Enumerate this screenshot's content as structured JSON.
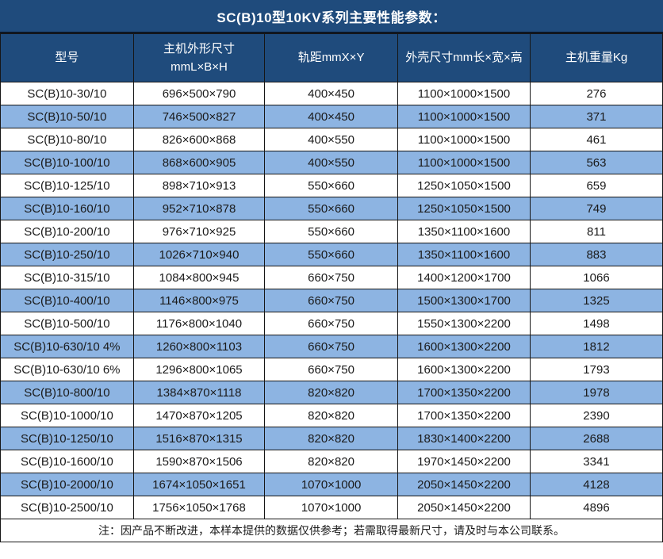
{
  "page": {
    "title": "SC(B)10型10KV系列主要性能参数："
  },
  "table": {
    "headers": [
      {
        "label": "型号"
      },
      {
        "label": "主机外形尺寸",
        "label2": "mmL×B×H"
      },
      {
        "label": "轨距mmX×Y"
      },
      {
        "label": "外壳尺寸mm长×宽×高"
      },
      {
        "label": "主机重量Kg"
      }
    ],
    "rows": [
      [
        "SC(B)10-30/10",
        "696×500×790",
        "400×450",
        "1100×1000×1500",
        "276"
      ],
      [
        "SC(B)10-50/10",
        "746×500×827",
        "400×450",
        "1100×1000×1500",
        "371"
      ],
      [
        "SC(B)10-80/10",
        "826×600×868",
        "400×550",
        "1100×1000×1500",
        "461"
      ],
      [
        "SC(B)10-100/10",
        "868×600×905",
        "400×550",
        "1100×1000×1500",
        "563"
      ],
      [
        "SC(B)10-125/10",
        "898×710×913",
        "550×660",
        "1250×1050×1500",
        "659"
      ],
      [
        "SC(B)10-160/10",
        "952×710×878",
        "550×660",
        "1250×1050×1500",
        "749"
      ],
      [
        "SC(B)10-200/10",
        "976×710×925",
        "550×660",
        "1350×1100×1600",
        "811"
      ],
      [
        "SC(B)10-250/10",
        "1026×710×940",
        "550×660",
        "1350×1100×1600",
        "883"
      ],
      [
        "SC(B)10-315/10",
        "1084×800×945",
        "660×750",
        "1400×1200×1700",
        "1066"
      ],
      [
        "SC(B)10-400/10",
        "1146×800×975",
        "660×750",
        "1500×1300×1700",
        "1325"
      ],
      [
        "SC(B)10-500/10",
        "1176×800×1040",
        "660×750",
        "1550×1300×2200",
        "1498"
      ],
      [
        "SC(B)10-630/10 4%",
        "1260×800×1103",
        "660×750",
        "1600×1300×2200",
        "1812"
      ],
      [
        "SC(B)10-630/10 6%",
        "1296×800×1065",
        "660×750",
        "1600×1300×2200",
        "1793"
      ],
      [
        "SC(B)10-800/10",
        "1384×870×1118",
        "820×820",
        "1700×1350×2200",
        "1978"
      ],
      [
        "SC(B)10-1000/10",
        "1470×870×1205",
        "820×820",
        "1700×1350×2200",
        "2390"
      ],
      [
        "SC(B)10-1250/10",
        "1516×870×1315",
        "820×820",
        "1830×1400×2200",
        "2688"
      ],
      [
        "SC(B)10-1600/10",
        "1590×870×1506",
        "820×820",
        "1970×1450×2200",
        "3341"
      ],
      [
        "SC(B)10-2000/10",
        "1674×1050×1651",
        "1070×1000",
        "2050×1450×2200",
        "4128"
      ],
      [
        "SC(B)10-2500/10",
        "1756×1050×1768",
        "1070×1000",
        "2050×1450×2200",
        "4896"
      ]
    ],
    "note": "注：因产品不断改进，本样本提供的数据仅供参考；若需取得最新尺寸，请及时与本公司联系。"
  },
  "colors": {
    "header_bg": "#1F4B7C",
    "row_bg": "#FFFFFF",
    "row_alt_bg": "#8DB4E2",
    "border": "#161616",
    "header_text": "#FFFFFF",
    "body_text": "#1A1A1A"
  }
}
